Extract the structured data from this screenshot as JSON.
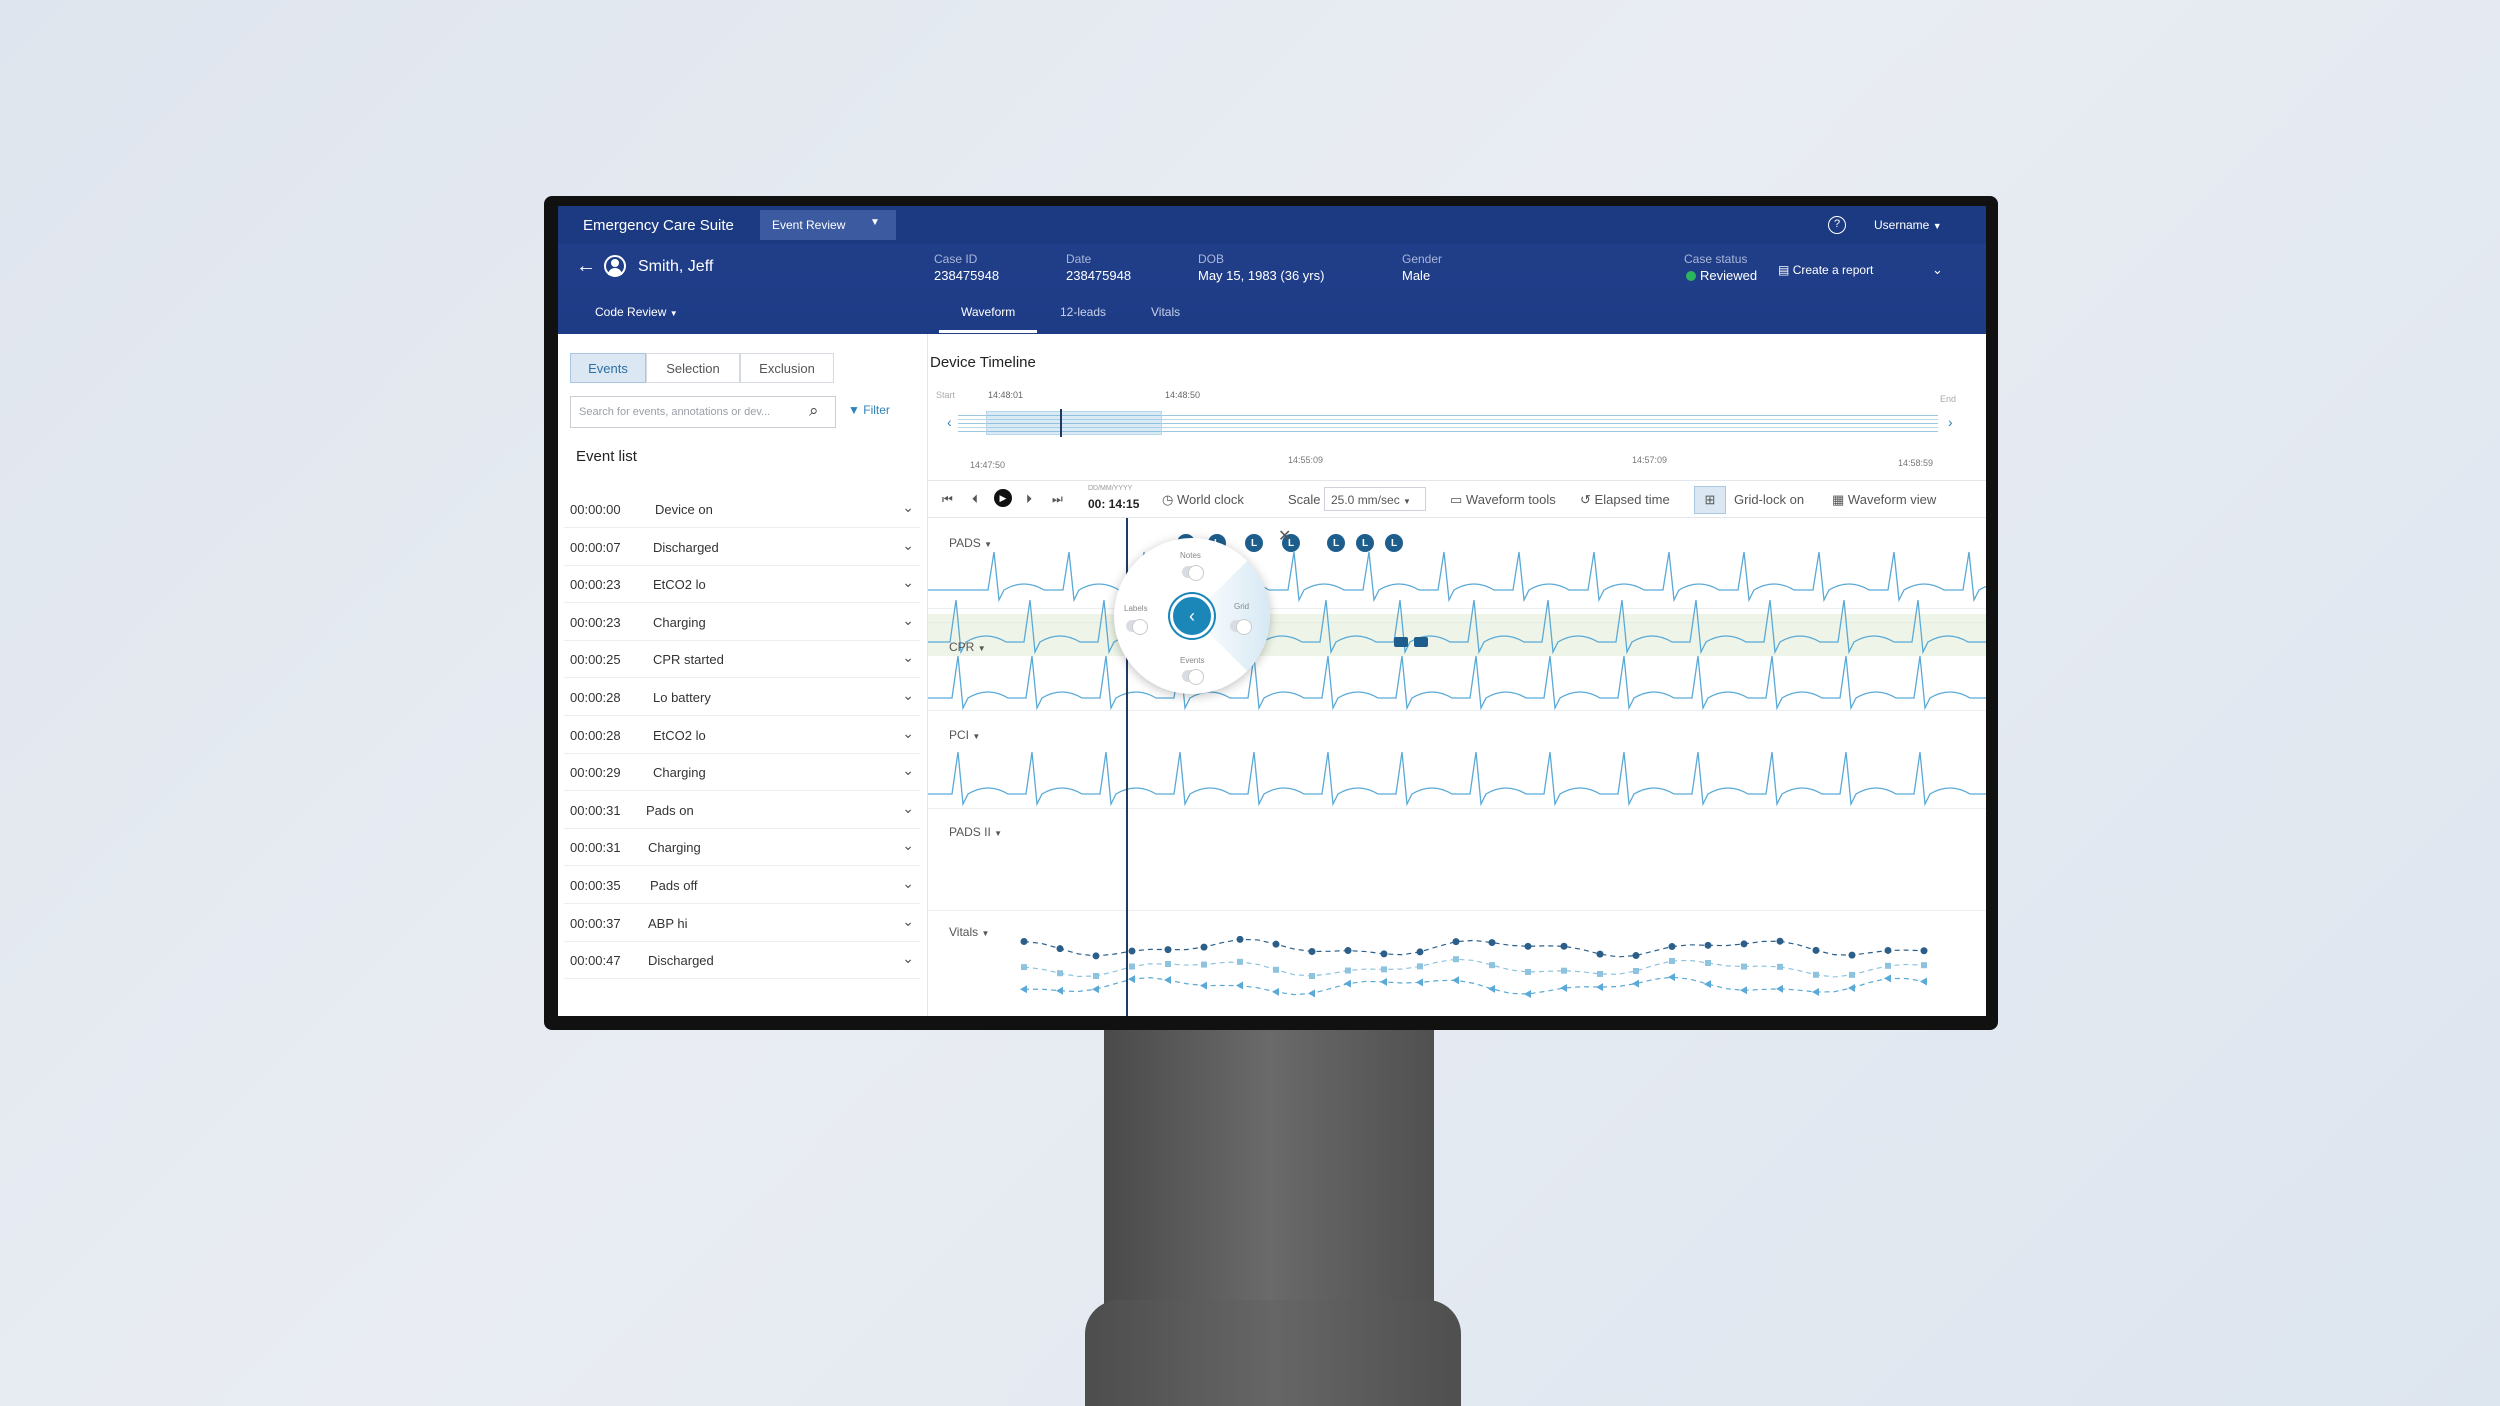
{
  "app": {
    "title": "Emergency Care Suite",
    "module": "Event Review",
    "username": "Username"
  },
  "patient": {
    "name": "Smith, Jeff"
  },
  "case": {
    "case_id_label": "Case ID",
    "case_id": "238475948",
    "date_label": "Date",
    "date": "238475948",
    "dob_label": "DOB",
    "dob": "May 15, 1983 (36 yrs)",
    "gender_label": "Gender",
    "gender": "Male",
    "status_label": "Case status",
    "status": "Reviewed",
    "status_color": "#2db55d",
    "create_report": "Create a report"
  },
  "nav": {
    "code_review": "Code Review",
    "tabs": [
      "Waveform",
      "12-leads",
      "Vitals"
    ],
    "active_tab": "Waveform"
  },
  "sidebar": {
    "segments": [
      "Events",
      "Selection",
      "Exclusion"
    ],
    "search_placeholder": "Search for events, annotations or dev...",
    "filter": "Filter",
    "list_title": "Event list",
    "events": [
      {
        "time": "00:00:00",
        "name": "Device on"
      },
      {
        "time": "00:00:07",
        "name": "Discharged"
      },
      {
        "time": "00:00:23",
        "name": "EtCO2 lo"
      },
      {
        "time": "00:00:23",
        "name": "Charging"
      },
      {
        "time": "00:00:25",
        "name": "CPR started"
      },
      {
        "time": "00:00:28",
        "name": "Lo battery"
      },
      {
        "time": "00:00:28",
        "name": "EtCO2 lo"
      },
      {
        "time": "00:00:29",
        "name": "Charging"
      },
      {
        "time": "00:00:31",
        "name": "Pads on"
      },
      {
        "time": "00:00:31",
        "name": "Charging"
      },
      {
        "time": "00:00:35",
        "name": "Pads off"
      },
      {
        "time": "00:00:37",
        "name": "ABP hi"
      },
      {
        "time": "00:00:47",
        "name": "Discharged"
      }
    ]
  },
  "timeline": {
    "title": "Device Timeline",
    "start": "Start",
    "end": "End",
    "marker1": "14:48:01",
    "marker2": "14:48:50",
    "ticks": [
      "14:47:50",
      "14:55:09",
      "14:57:09",
      "14:58:59"
    ]
  },
  "toolbar": {
    "date_placeholder": "DD/MM/YYYY",
    "time": "00: 14:15",
    "world_clock": "World clock",
    "scale_label": "Scale",
    "scale_value": "25.0 mm/sec",
    "waveform_tools": "Waveform tools",
    "elapsed_time": "Elapsed time",
    "grid_lock": "Grid-lock on",
    "waveform_view": "Waveform view"
  },
  "lanes": [
    "PADS",
    "CPR",
    "PCI",
    "PADS II",
    "Vitals"
  ],
  "label_marker": "L",
  "popup": {
    "notes": "Notes",
    "labels": "Labels",
    "grid": "Grid",
    "events": "Events"
  },
  "colors": {
    "header": "#1e3c86",
    "accent": "#1b86b8",
    "waveform": "#5aa9d6",
    "cpr_band": "#eef5e8"
  }
}
